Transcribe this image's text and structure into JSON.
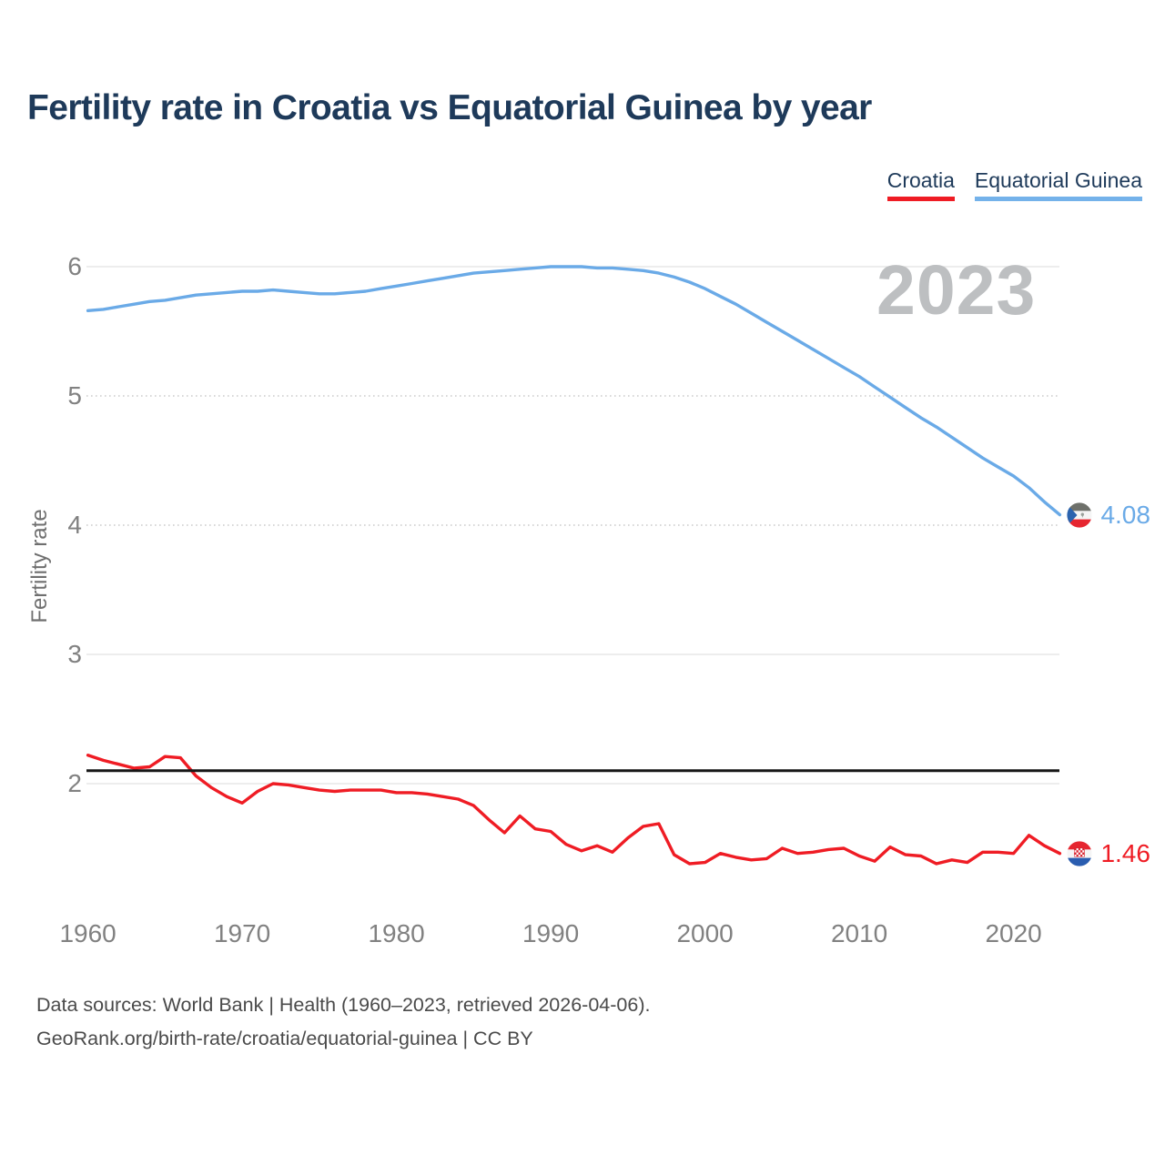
{
  "title": {
    "text": "Fertility rate in Croatia vs Equatorial Guinea by year",
    "color": "#1e3a5a"
  },
  "legend": {
    "position": "top-right",
    "items": [
      {
        "label": "Croatia",
        "underline_color": "#ef1c24"
      },
      {
        "label": "Equatorial Guinea",
        "underline_color": "#74b2ea"
      }
    ]
  },
  "watermark": {
    "text": "2023",
    "color": "#bdbfc1"
  },
  "footer": {
    "line1": "Data sources: World Bank | Health (1960–2023, retrieved 2026-04-06).",
    "line2": "GeoRank.org/birth-rate/croatia/equatorial-guinea | CC BY"
  },
  "chart_data": {
    "type": "line",
    "title": "Fertility rate in Croatia vs Equatorial Guinea by year",
    "ylabel": "Fertility rate",
    "xlabel": "",
    "grid": true,
    "legend_position": "top-right",
    "ylim": [
      1.2,
      6.25
    ],
    "x_range": [
      1960,
      2023
    ],
    "yticks": [
      6,
      5,
      4,
      3,
      2
    ],
    "xticks": [
      1960,
      1970,
      1980,
      1990,
      2000,
      2010,
      2020
    ],
    "reference_line": {
      "value": 2.1,
      "color": "#161616"
    },
    "years": [
      1960,
      1961,
      1962,
      1963,
      1964,
      1965,
      1966,
      1967,
      1968,
      1969,
      1970,
      1971,
      1972,
      1973,
      1974,
      1975,
      1976,
      1977,
      1978,
      1979,
      1980,
      1981,
      1982,
      1983,
      1984,
      1985,
      1986,
      1987,
      1988,
      1989,
      1990,
      1991,
      1992,
      1993,
      1994,
      1995,
      1996,
      1997,
      1998,
      1999,
      2000,
      2001,
      2002,
      2003,
      2004,
      2005,
      2006,
      2007,
      2008,
      2009,
      2010,
      2011,
      2012,
      2013,
      2014,
      2015,
      2016,
      2017,
      2018,
      2019,
      2020,
      2021,
      2022,
      2023
    ],
    "series": [
      {
        "name": "Croatia",
        "color": "#ef1c24",
        "end_label": "1.46",
        "end_value": 1.46,
        "values": [
          2.22,
          2.18,
          2.15,
          2.12,
          2.13,
          2.21,
          2.2,
          2.06,
          1.97,
          1.9,
          1.85,
          1.94,
          2.0,
          1.99,
          1.97,
          1.95,
          1.94,
          1.95,
          1.95,
          1.95,
          1.93,
          1.93,
          1.92,
          1.9,
          1.88,
          1.83,
          1.72,
          1.62,
          1.75,
          1.65,
          1.63,
          1.53,
          1.48,
          1.52,
          1.47,
          1.58,
          1.67,
          1.69,
          1.45,
          1.38,
          1.39,
          1.46,
          1.43,
          1.41,
          1.42,
          1.5,
          1.46,
          1.47,
          1.49,
          1.5,
          1.44,
          1.4,
          1.51,
          1.45,
          1.44,
          1.38,
          1.41,
          1.39,
          1.47,
          1.47,
          1.46,
          1.6,
          1.52,
          1.46
        ]
      },
      {
        "name": "Equatorial Guinea",
        "color": "#6aaae7",
        "end_label": "4.08",
        "end_value": 4.08,
        "values": [
          5.66,
          5.67,
          5.69,
          5.71,
          5.73,
          5.74,
          5.76,
          5.78,
          5.79,
          5.8,
          5.81,
          5.81,
          5.82,
          5.81,
          5.8,
          5.79,
          5.79,
          5.8,
          5.81,
          5.83,
          5.85,
          5.87,
          5.89,
          5.91,
          5.93,
          5.95,
          5.96,
          5.97,
          5.98,
          5.99,
          6.0,
          6.0,
          6.0,
          5.99,
          5.99,
          5.98,
          5.97,
          5.95,
          5.92,
          5.88,
          5.83,
          5.77,
          5.71,
          5.64,
          5.57,
          5.5,
          5.43,
          5.36,
          5.29,
          5.22,
          5.15,
          5.07,
          4.99,
          4.91,
          4.83,
          4.76,
          4.68,
          4.6,
          4.52,
          4.45,
          4.38,
          4.29,
          4.18,
          4.08
        ]
      }
    ]
  }
}
